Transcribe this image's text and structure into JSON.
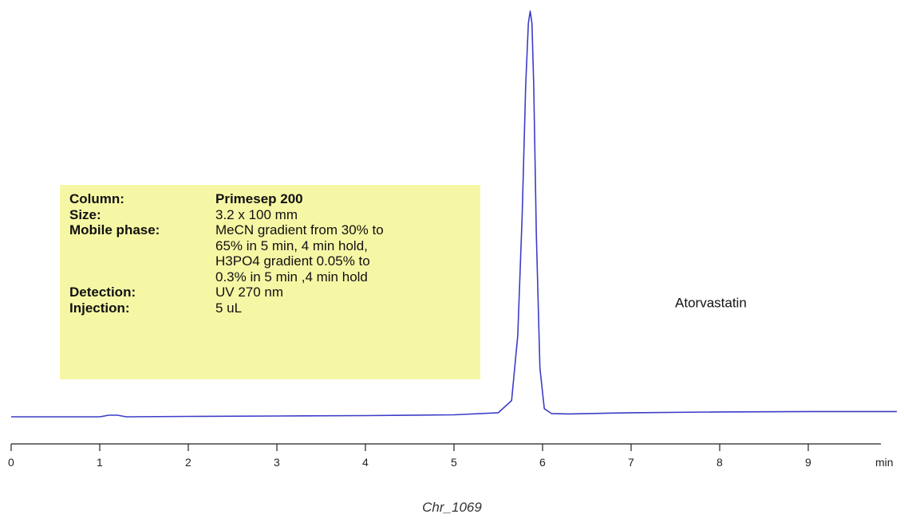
{
  "chart_data": {
    "type": "line",
    "xlabel": "min",
    "ylabel": "",
    "xlim": [
      0,
      10
    ],
    "ylim": [
      0,
      1
    ],
    "x_ticks": [
      0,
      1,
      2,
      3,
      4,
      5,
      6,
      7,
      8,
      9
    ],
    "x_tick_labels": [
      "0",
      "1",
      "2",
      "3",
      "4",
      "5",
      "6",
      "7",
      "8",
      "9"
    ],
    "grid": false,
    "line_color": "#3c3cc8",
    "series": [
      {
        "x": [
          0,
          1.0,
          1.1,
          1.2,
          1.3,
          2,
          3,
          4,
          5,
          5.5,
          5.65,
          5.72,
          5.77,
          5.81,
          5.84,
          5.86,
          5.88,
          5.9,
          5.93,
          5.97,
          6.02,
          6.1,
          6.3,
          7,
          8,
          9,
          10
        ],
        "y": [
          0.0,
          0.0,
          0.004,
          0.004,
          0.0,
          0.001,
          0.002,
          0.003,
          0.005,
          0.01,
          0.04,
          0.2,
          0.5,
          0.82,
          0.97,
          1.0,
          0.97,
          0.82,
          0.45,
          0.12,
          0.02,
          0.008,
          0.007,
          0.01,
          0.012,
          0.013,
          0.013
        ]
      }
    ],
    "annotations": [
      {
        "text": "Atorvastatin",
        "x": 7.9,
        "y": 0.27
      }
    ]
  },
  "info_box": {
    "rows": [
      {
        "key": "Column:",
        "value": "Primesep 200",
        "bold": true
      },
      {
        "key": "Size:",
        "value": "3.2 x 100 mm",
        "bold": false
      },
      {
        "key": "Mobile phase:",
        "value": "MeCN gradient from 30% to\n65% in 5 min, 4 min   hold,\nH3PO4 gradient 0.05% to\n0.3% in 5 min ,4 min hold",
        "bold": false
      },
      {
        "key": "Detection:",
        "value": "UV 270 nm",
        "bold": false
      },
      {
        "key": "Injection:",
        "value": "5 uL",
        "bold": false
      }
    ],
    "background": "#f6f7a5"
  },
  "caption": "Chr_1069"
}
